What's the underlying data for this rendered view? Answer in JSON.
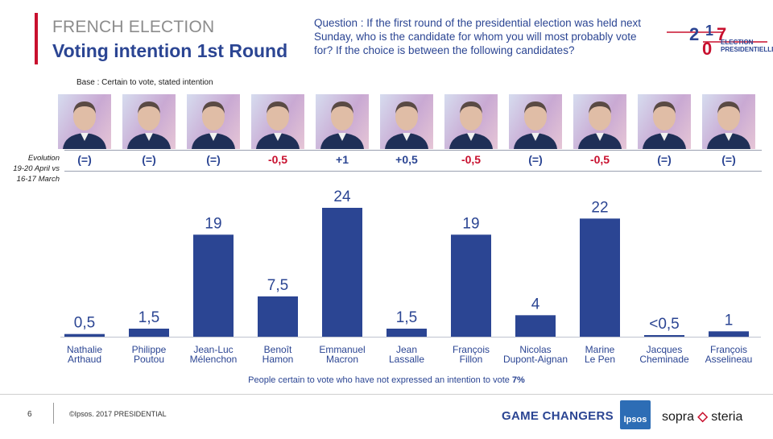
{
  "header": {
    "supertitle": "FRENCH ELECTION",
    "title": "Voting intention 1st Round",
    "question": "Question : If the first round of the presidential election was held next Sunday, who is the candidate for whom you will most probably vote for? If the choice is between the following candidates?",
    "base": "Base : Certain to vote, stated intention"
  },
  "logo": {
    "year_digits": [
      "2",
      "0",
      "1",
      "7"
    ],
    "line1": "ELECTION",
    "line2": "PRESIDENTIELLE"
  },
  "evolution": {
    "label_lines": [
      "Evolution",
      "19-20 April vs",
      "16-17 March"
    ],
    "values": [
      "(=)",
      "(=)",
      "(=)",
      "-0,5",
      "+1",
      "+0,5",
      "-0,5",
      "(=)",
      "-0,5",
      "(=)",
      "(=)"
    ]
  },
  "chart_data": {
    "type": "bar",
    "title": "Voting intention 1st Round",
    "categories": [
      "Nathalie Arthaud",
      "Philippe Poutou",
      "Jean-Luc Mélenchon",
      "Benoît Hamon",
      "Emmanuel Macron",
      "Jean Lassalle",
      "François Fillon",
      "Nicolas Dupont-Aignan",
      "Marine Le Pen",
      "Jacques Cheminade",
      "François Asselineau"
    ],
    "category_lines": [
      [
        "Nathalie",
        "Arthaud"
      ],
      [
        "Philippe",
        "Poutou"
      ],
      [
        "Jean-Luc",
        "Mélenchon"
      ],
      [
        "Benoît",
        "Hamon"
      ],
      [
        "Emmanuel",
        "Macron"
      ],
      [
        "Jean",
        "Lassalle"
      ],
      [
        "François",
        "Fillon"
      ],
      [
        "Nicolas",
        "Dupont-Aignan"
      ],
      [
        "Marine",
        "Le Pen"
      ],
      [
        "Jacques",
        "Cheminade"
      ],
      [
        "François",
        "Asselineau"
      ]
    ],
    "values": [
      0.5,
      1.5,
      19,
      7.5,
      24,
      1.5,
      19,
      4,
      22,
      0.3,
      1
    ],
    "data_labels": [
      "0,5",
      "1,5",
      "19",
      "7,5",
      "24",
      "1,5",
      "19",
      "4",
      "22",
      "<0,5",
      "1"
    ],
    "ylim": [
      0,
      24
    ],
    "unit": "%",
    "xlabel": "",
    "ylabel": "",
    "grid": false,
    "bar_color": "#2b4593"
  },
  "footnote": {
    "text": "People certain to vote who have not expressed an intention to vote",
    "value": "7%"
  },
  "footer": {
    "page": "6",
    "copyright": "©Ipsos. 2017 PRESIDENTIAL",
    "game_changers": "GAME CHANGERS",
    "ipsos": "Ipsos",
    "sopra_left": "sopra",
    "sopra_mark": "◇",
    "sopra_right": "steria"
  },
  "colors": {
    "accent": "#2b4593",
    "negative": "#c8102e",
    "rule": "#c8102e"
  }
}
